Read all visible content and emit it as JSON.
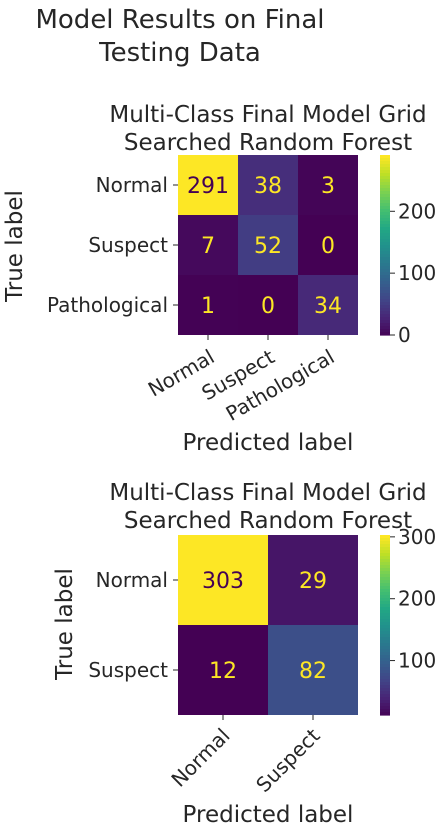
{
  "figure": {
    "title_lines": [
      "Model Results on Final",
      "Testing Data"
    ]
  },
  "chart_data": [
    {
      "type": "heatmap",
      "title_lines": [
        "Multi-Class Final Model Grid",
        "Searched Random Forest"
      ],
      "xlabel": "Predicted label",
      "ylabel": "True label",
      "x_categories": [
        "Normal",
        "Suspect",
        "Pathological"
      ],
      "y_categories": [
        "Normal",
        "Suspect",
        "Pathological"
      ],
      "values": [
        [
          291,
          38,
          3
        ],
        [
          7,
          52,
          0
        ],
        [
          1,
          0,
          34
        ]
      ],
      "colormap": "viridis",
      "color_range": [
        0,
        291
      ],
      "colorbar_ticks": [
        0,
        100,
        200
      ],
      "grid": false
    },
    {
      "type": "heatmap",
      "title_lines": [
        "Multi-Class Final Model Grid",
        "Searched Random Forest"
      ],
      "xlabel": "Predicted label",
      "ylabel": "True label",
      "x_categories": [
        "Normal",
        "Suspect"
      ],
      "y_categories": [
        "Normal",
        "Suspect"
      ],
      "values": [
        [
          303,
          29
        ],
        [
          12,
          82
        ]
      ],
      "colormap": "viridis",
      "color_range": [
        12,
        303
      ],
      "colorbar_ticks": [
        100,
        200,
        300
      ],
      "grid": false
    }
  ]
}
